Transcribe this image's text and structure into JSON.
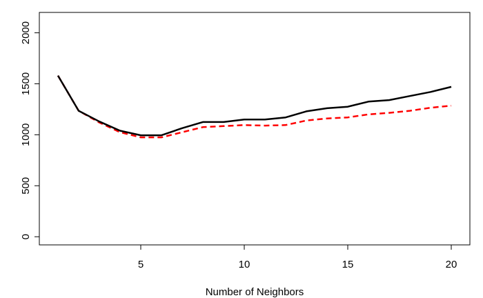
{
  "chart_data": {
    "type": "line",
    "title": "",
    "xlabel": "Number of Neighbors",
    "ylabel": "",
    "xlim": [
      0.1,
      20.9
    ],
    "ylim": [
      -80,
      2200
    ],
    "x_ticks": [
      5,
      10,
      15,
      20
    ],
    "y_ticks": [
      0,
      500,
      1000,
      1500,
      2000
    ],
    "x_tick_labels": [
      "5",
      "10",
      "15",
      "20"
    ],
    "y_tick_labels": [
      "0",
      "500",
      "1000",
      "1500",
      "2000"
    ],
    "grid": false,
    "legend": "none",
    "x": [
      1,
      2,
      3,
      4,
      5,
      6,
      7,
      8,
      9,
      10,
      11,
      12,
      13,
      14,
      15,
      16,
      17,
      18,
      19,
      20
    ],
    "series": [
      {
        "color": "#000000",
        "line_style": "solid",
        "values": [
          1580,
          1235,
          1130,
          1040,
          995,
          995,
          1065,
          1125,
          1125,
          1150,
          1150,
          1170,
          1230,
          1260,
          1275,
          1325,
          1340,
          1380,
          1420,
          1470
        ]
      },
      {
        "color": "#ff0000",
        "line_style": "dashed",
        "values": [
          1580,
          1235,
          1120,
          1025,
          975,
          975,
          1025,
          1075,
          1085,
          1095,
          1090,
          1095,
          1140,
          1160,
          1170,
          1200,
          1215,
          1235,
          1265,
          1285
        ]
      }
    ]
  }
}
